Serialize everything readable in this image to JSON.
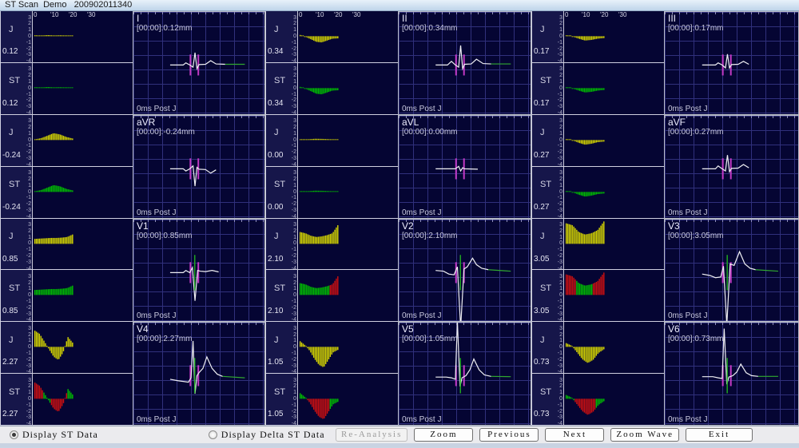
{
  "title": "ST Scan  Demo   200902011340",
  "colors": {
    "panel_bg": "#050533",
    "grid": "#30307c",
    "bar_j": "#d8d800",
    "bar_st_ok": "#00c000",
    "bar_st_alarm": "#d01010",
    "trace": "#f0f0f4",
    "trace_tail": "#30a830",
    "marker": "#cc3ccc",
    "jpoint_marker": "#20b020",
    "label_bg": "#16164a"
  },
  "axis": {
    "x_ticks": [
      "0",
      "'10",
      "'20",
      "'30"
    ],
    "y_ticks": [
      "3",
      "2",
      "1",
      "0",
      "-1",
      "-2",
      "-3",
      "-4"
    ]
  },
  "labels": {
    "j": "J",
    "st": "ST"
  },
  "leads": [
    {
      "name": "I",
      "j": "0.12",
      "st": "0.12",
      "wave_label": "[00:00]:0.12mm",
      "post_j": "0ms Post J",
      "trend": [
        0.15,
        0.1,
        0.18,
        0.12,
        0.15,
        0.1,
        0.08
      ],
      "st_red": [],
      "green_marker": false,
      "wave": [
        28,
        0,
        38,
        0,
        40,
        0.3,
        43,
        0,
        45.5,
        -0.3,
        47,
        1.7,
        48.5,
        -0.5,
        50,
        0.05,
        55,
        0.1,
        59,
        0.6,
        63,
        0.15,
        70,
        0.1,
        85,
        0.1
      ]
    },
    {
      "name": "II",
      "j": "0.34",
      "st": "0.34",
      "wave_label": "[00:00]:0.34mm",
      "post_j": "0ms Post J",
      "trend": [
        0.2,
        -0.1,
        -0.5,
        -0.9,
        -1.0,
        -0.7,
        -0.4,
        -0.35
      ],
      "st_red": [],
      "green_marker": false,
      "wave": [
        28,
        0,
        37,
        0,
        40,
        0.5,
        43,
        0,
        45.5,
        -0.3,
        47,
        2.7,
        48.5,
        -0.5,
        50,
        0.1,
        55,
        0.15,
        59,
        0.8,
        64,
        0.2,
        70,
        0.15,
        85,
        0.15
      ]
    },
    {
      "name": "III",
      "j": "0.17",
      "st": "0.17",
      "wave_label": "[00:00]:0.17mm",
      "post_j": "0ms Post J",
      "trend": [
        0.15,
        -0.05,
        -0.4,
        -0.7,
        -0.6,
        -0.4,
        -0.3
      ],
      "st_red": [],
      "green_marker": false,
      "wave": [
        28,
        0,
        38,
        0,
        40,
        0.3,
        43,
        0,
        45.5,
        -0.4,
        47,
        1.5,
        48.5,
        -0.4,
        50,
        0.05,
        55,
        0.1,
        59,
        0.5,
        63,
        0.1,
        85,
        0.1
      ]
    },
    {
      "name": "aVR",
      "j": "-0.24",
      "st": "-0.24",
      "wave_label": "[00:00]:-0.24mm",
      "post_j": "0ms Post J",
      "trend": [
        0.1,
        0.3,
        0.7,
        1.1,
        0.9,
        0.5,
        0.25
      ],
      "st_red": [],
      "green_marker": false,
      "wave": [
        28,
        0,
        38,
        0,
        40,
        -0.3,
        43,
        0,
        45.5,
        0.4,
        47,
        -2.4,
        48.5,
        0.2,
        50,
        -0.05,
        55,
        -0.1,
        59,
        -0.6,
        63,
        -0.15,
        85,
        -0.1
      ]
    },
    {
      "name": "aVL",
      "j": "0.00",
      "st": "0.00",
      "wave_label": "[00:00]:0.00mm",
      "post_j": "0ms Post J",
      "trend": [
        0.1,
        0.12,
        0.2,
        0.18,
        0.12,
        0.1
      ],
      "st_red": [],
      "green_marker": false,
      "wave": [
        28,
        0,
        43,
        0,
        45.5,
        0.35,
        47,
        -0.3,
        48.5,
        0.15,
        50,
        0,
        60,
        -0.05,
        85,
        -0.05
      ]
    },
    {
      "name": "aVF",
      "j": "0.27",
      "st": "0.27",
      "wave_label": "[00:00]:0.27mm",
      "post_j": "0ms Post J",
      "trend": [
        0.15,
        -0.05,
        -0.45,
        -0.75,
        -0.6,
        -0.35,
        -0.25
      ],
      "st_red": [],
      "green_marker": false,
      "wave": [
        28,
        0,
        38,
        0,
        40,
        0.4,
        43,
        0,
        45.5,
        -0.3,
        47,
        1.9,
        48.5,
        -0.4,
        50,
        0.05,
        55,
        0.1,
        59,
        0.6,
        63,
        0.15,
        85,
        0.1
      ]
    },
    {
      "name": "V1",
      "j": "0.85",
      "st": "0.85",
      "wave_label": "[00:00]:0.85mm",
      "post_j": "0ms Post J",
      "trend": [
        0.8,
        0.85,
        0.9,
        0.95,
        0.95,
        1.0,
        1.1,
        1.5
      ],
      "st_red": [],
      "green_marker": true,
      "wave": [
        28,
        0,
        38,
        0,
        40,
        0.3,
        43,
        0,
        45,
        0.7,
        47,
        -3.9,
        49,
        0.3,
        51,
        0.2,
        55,
        0.15,
        60,
        0.3,
        65,
        0.1,
        85,
        0.05
      ]
    },
    {
      "name": "V2",
      "j": "2.10",
      "st": "2.10",
      "wave_label": "[00:00]:2.10mm",
      "post_j": "0ms Post J",
      "trend": [
        1.9,
        1.7,
        1.3,
        1.1,
        1.2,
        1.4,
        1.7,
        3.0
      ],
      "st_red": [
        [
          0.8,
          1.0
        ]
      ],
      "green_marker": true,
      "wave": [
        28,
        0.3,
        34,
        0.2,
        38,
        -0.2,
        42,
        -0.3,
        44.5,
        0.8,
        47,
        -7.6,
        49.5,
        0.5,
        52,
        0.8,
        56,
        2.0,
        59,
        1.1,
        63,
        0.6,
        68,
        0.4,
        85,
        0.2
      ]
    },
    {
      "name": "V3",
      "j": "3.05",
      "st": "3.05",
      "wave_label": "[00:00]:3.05mm",
      "post_j": "0ms Post J",
      "trend": [
        3.3,
        3.0,
        1.9,
        1.5,
        1.7,
        2.2,
        3.6
      ],
      "st_red": [
        [
          0,
          0.27
        ],
        [
          0.7,
          1.0
        ]
      ],
      "green_marker": true,
      "wave": [
        28,
        -0.2,
        34,
        -0.4,
        38,
        -0.7,
        42,
        -0.6,
        44,
        0.9,
        46.5,
        -7.2,
        49,
        1.2,
        52,
        1.0,
        56,
        2.9,
        60,
        1.2,
        64,
        0.6,
        68,
        0.4,
        85,
        0.2
      ]
    },
    {
      "name": "V4",
      "j": "2.27",
      "st": "2.27",
      "wave_label": "[00:00]:2.27mm",
      "post_j": "0ms Post J",
      "trend": [
        2.6,
        2.1,
        0.9,
        -0.4,
        -1.6,
        -2.1,
        -0.9,
        1.6,
        0.7
      ],
      "st_red": [
        [
          0,
          0.2
        ],
        [
          0.42,
          0.72
        ],
        [
          0.76,
          0.86
        ]
      ],
      "green_marker": true,
      "wave": [
        28,
        -0.5,
        34,
        -0.7,
        38,
        -0.8,
        42,
        -0.9,
        44,
        -0.3,
        45.5,
        4.8,
        47,
        -2.5,
        48.5,
        0,
        50,
        0.4,
        53,
        1.0,
        56,
        2.6,
        60,
        1.0,
        64,
        0.2,
        68,
        -0.1,
        85,
        -0.3
      ]
    },
    {
      "name": "V5",
      "j": "1.05",
      "st": "1.05",
      "wave_label": "[00:00]:1.05mm",
      "post_j": "0ms Post J",
      "trend": [
        0.9,
        0.3,
        -0.6,
        -1.9,
        -2.9,
        -3.3,
        -2.1,
        -0.9,
        -0.5
      ],
      "st_red": [
        [
          0.2,
          0.78
        ]
      ],
      "green_marker": true,
      "wave": [
        28,
        -0.2,
        36,
        -0.2,
        40,
        -0.3,
        43,
        -0.5,
        44.5,
        7.5,
        46.5,
        -1.5,
        48,
        -0.3,
        51,
        0,
        54,
        0.8,
        57,
        2.3,
        61,
        0.8,
        65,
        0.1,
        70,
        -0.1,
        85,
        -0.15
      ]
    },
    {
      "name": "V6",
      "j": "0.73",
      "st": "0.73",
      "wave_label": "[00:00]:0.73mm",
      "post_j": "0ms Post J",
      "trend": [
        0.6,
        0.2,
        -0.9,
        -2.0,
        -2.6,
        -2.1,
        -1.0,
        -0.4
      ],
      "st_red": [
        [
          0.24,
          0.78
        ]
      ],
      "green_marker": true,
      "wave": [
        28,
        -0.15,
        36,
        -0.15,
        40,
        -0.3,
        43,
        -0.4,
        44.5,
        6.5,
        46.5,
        -1.2,
        48,
        -0.2,
        51,
        0,
        54,
        0.5,
        57,
        1.6,
        61,
        0.4,
        65,
        0,
        70,
        -0.1,
        85,
        -0.1
      ]
    }
  ],
  "footer": {
    "radios": [
      {
        "label": "Display ST Data",
        "selected": true
      },
      {
        "label": "Display Delta ST Data",
        "selected": false
      }
    ],
    "buttons": [
      {
        "label": "Re-Analysis",
        "enabled": false
      },
      {
        "label": "Zoom",
        "enabled": true
      },
      {
        "label": "Previous",
        "enabled": true
      },
      {
        "label": "Next",
        "enabled": true
      },
      {
        "label": "Zoom Wave",
        "enabled": true
      },
      {
        "label": "Exit",
        "enabled": true
      }
    ]
  }
}
